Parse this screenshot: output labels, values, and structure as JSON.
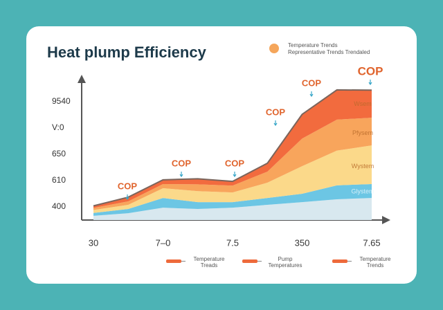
{
  "chart_data": {
    "type": "stacked_area",
    "title": "Heat plump Efficiency",
    "top_legend": [
      "Temperature Trends",
      "Representative Trends Trendaled"
    ],
    "categories": [
      "30",
      null,
      "7–0",
      null,
      "7.5",
      null,
      "350",
      null,
      "7.65"
    ],
    "ylim": [
      0,
      5.5
    ],
    "yticks": [
      {
        "value": 0.5,
        "label": "400"
      },
      {
        "value": 1.5,
        "label": "610"
      },
      {
        "value": 2.5,
        "label": "650"
      },
      {
        "value": 3.5,
        "label": "V:0"
      },
      {
        "value": 4.5,
        "label": "9540"
      }
    ],
    "series": [
      {
        "color": "#d8e8ef",
        "values": [
          0.16,
          0.26,
          0.47,
          0.42,
          0.47,
          0.58,
          0.68,
          0.79,
          0.84
        ]
      },
      {
        "name": "Glystem",
        "color": "#6cc6e4",
        "values": [
          0.11,
          0.16,
          0.37,
          0.26,
          0.21,
          0.26,
          0.32,
          0.53,
          0.53
        ]
      },
      {
        "name": "Wystem",
        "color": "#fbd98a",
        "values": [
          0.11,
          0.16,
          0.37,
          0.42,
          0.37,
          0.58,
          1.05,
          1.32,
          1.47
        ]
      },
      {
        "name": "Pfysem",
        "color": "#f8a55c",
        "values": [
          0.08,
          0.13,
          0.16,
          0.26,
          0.26,
          0.42,
          1.05,
          1.18,
          1.05
        ]
      },
      {
        "name": "Wsem",
        "color": "#f26b3e",
        "values": [
          0.08,
          0.16,
          0.16,
          0.21,
          0.16,
          0.32,
          0.92,
          1.13,
          1.05
        ]
      }
    ],
    "annotations": [
      "COP",
      "COP",
      "COP",
      "COP",
      "COP",
      "COP"
    ],
    "legend": [
      {
        "lines": [
          "Temperature",
          "Treads"
        ]
      },
      {
        "lines": [
          "Pump",
          "Temperatures"
        ]
      },
      {
        "lines": [
          "Temperature",
          "Trends"
        ]
      }
    ]
  }
}
